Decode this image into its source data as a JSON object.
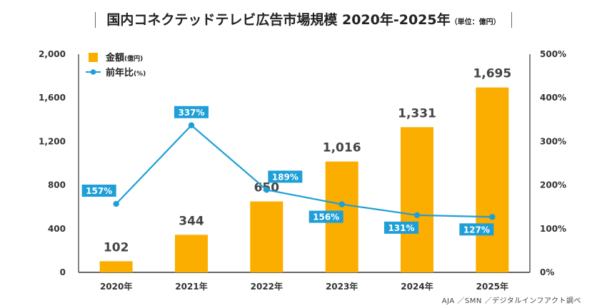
{
  "title": {
    "main": "国内コネクテッドテレビ広告市場規模 2020年-2025年",
    "unit": "（単位：億円）"
  },
  "source": "AJA ／SMN ／デジタルインフアクト調べ",
  "colors": {
    "bar": "#FBAD00",
    "line": "#1E9FD7",
    "label_box": "#1E9FD7",
    "axis_text": "#333333",
    "axis_line": "#333333"
  },
  "chart_data": {
    "type": "bar",
    "categories": [
      "2020年",
      "2021年",
      "2022年",
      "2023年",
      "2024年",
      "2025年"
    ],
    "series": [
      {
        "name": "金額",
        "name_unit": "(億円)",
        "type": "bar",
        "axis": "left",
        "values": [
          102,
          344,
          650,
          1016,
          1331,
          1695
        ],
        "labels": [
          "102",
          "344",
          "650",
          "1,016",
          "1,331",
          "1,695"
        ]
      },
      {
        "name": "前年比",
        "name_unit": "(%)",
        "type": "line",
        "axis": "right",
        "values": [
          157,
          337,
          189,
          156,
          131,
          127
        ],
        "labels": [
          "157%",
          "337%",
          "189%",
          "156%",
          "131%",
          "127%"
        ],
        "label_position": [
          "left",
          "above",
          "right",
          "below",
          "below",
          "below"
        ]
      }
    ],
    "y_left": {
      "ylim": [
        0,
        2000
      ],
      "ticks": [
        0,
        400,
        800,
        1200,
        1600,
        2000
      ],
      "tick_labels": [
        "0",
        "400",
        "800",
        "1,200",
        "1,600",
        "2,000"
      ]
    },
    "y_right": {
      "ylim": [
        0,
        500
      ],
      "ticks": [
        0,
        100,
        200,
        300,
        400,
        500
      ],
      "tick_labels": [
        "0%",
        "100%",
        "200%",
        "300%",
        "400%",
        "500%"
      ]
    },
    "grid": false,
    "legend": "top-left"
  }
}
